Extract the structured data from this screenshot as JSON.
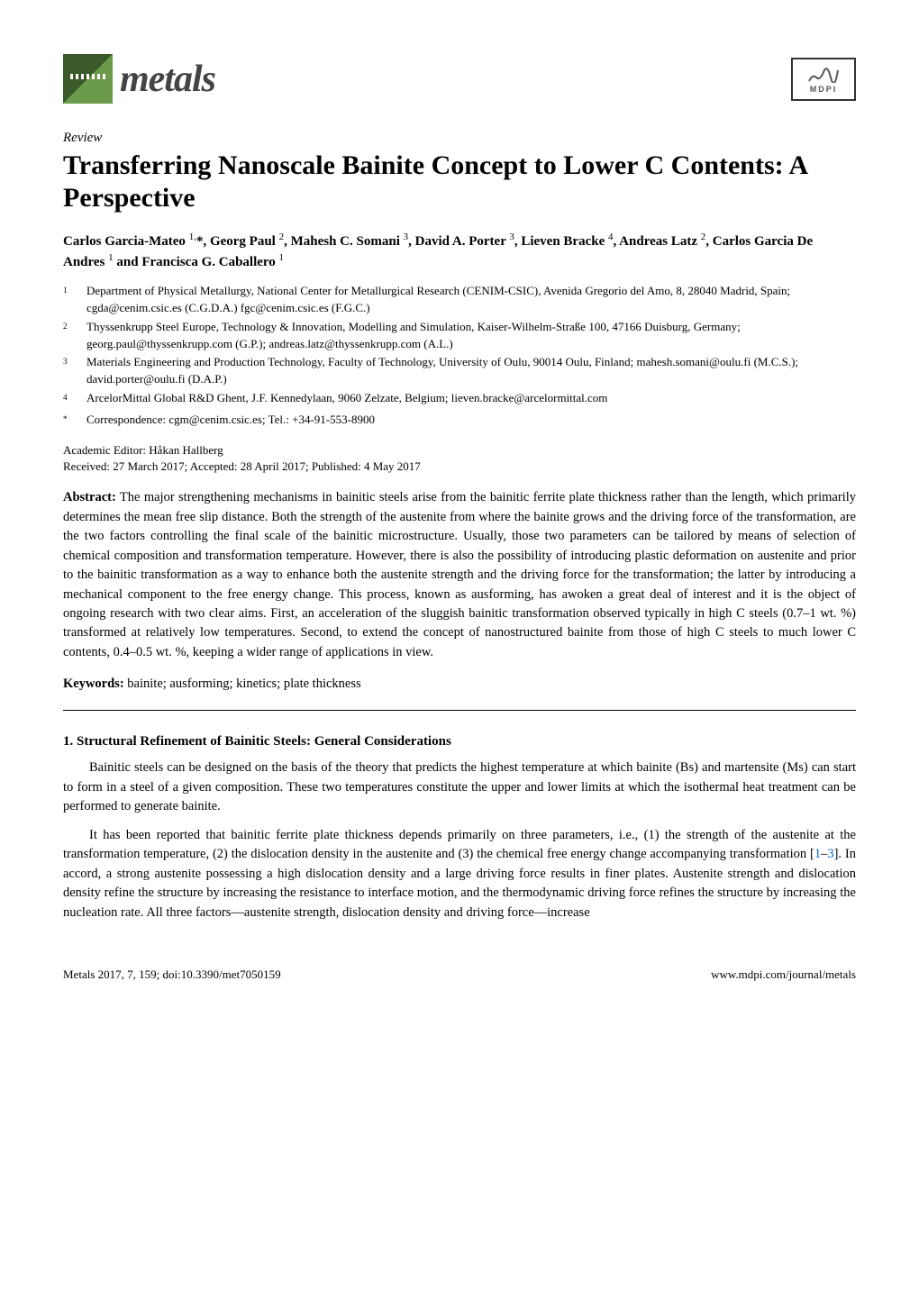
{
  "header": {
    "journal_name": "metals",
    "publisher": "MDPI"
  },
  "article": {
    "type": "Review",
    "title": "Transferring Nanoscale Bainite Concept to Lower C Contents: A Perspective",
    "authors_html": "Carlos Garcia-Mateo <sup>1,</sup>*, Georg Paul <sup>2</sup>, Mahesh C. Somani <sup>3</sup>, David A. Porter <sup>3</sup>, Lieven Bracke <sup>4</sup>, Andreas Latz <sup>2</sup>, Carlos Garcia De Andres <sup>1</sup> and Francisca G. Caballero <sup>1</sup>",
    "affiliations": [
      {
        "n": "1",
        "text": "Department of Physical Metallurgy, National Center for Metallurgical Research (CENIM-CSIC), Avenida Gregorio del Amo, 8, 28040 Madrid, Spain; cgda@cenim.csic.es (C.G.D.A.) fgc@cenim.csic.es (F.G.C.)"
      },
      {
        "n": "2",
        "text": "Thyssenkrupp Steel Europe, Technology & Innovation, Modelling and Simulation, Kaiser-Wilhelm-Straße 100, 47166 Duisburg, Germany; georg.paul@thyssenkrupp.com (G.P.); andreas.latz@thyssenkrupp.com (A.L.)"
      },
      {
        "n": "3",
        "text": "Materials Engineering and Production Technology, Faculty of Technology, University of Oulu, 90014 Oulu, Finland; mahesh.somani@oulu.fi (M.C.S.); david.porter@oulu.fi (D.A.P.)"
      },
      {
        "n": "4",
        "text": "ArcelorMittal Global R&D Ghent, J.F. Kennedylaan, 9060 Zelzate, Belgium; lieven.bracke@arcelormittal.com"
      },
      {
        "n": "*",
        "text": "Correspondence: cgm@cenim.csic.es; Tel.: +34-91-553-8900"
      }
    ],
    "editor": "Academic Editor: Håkan Hallberg",
    "dates": "Received: 27 March 2017; Accepted: 28 April 2017; Published: 4 May 2017",
    "abstract_label": "Abstract:",
    "abstract": "The major strengthening mechanisms in bainitic steels arise from the bainitic ferrite plate thickness rather than the length, which primarily determines the mean free slip distance. Both the strength of the austenite from where the bainite grows and the driving force of the transformation, are the two factors controlling the final scale of the bainitic microstructure. Usually, those two parameters can be tailored by means of selection of chemical composition and transformation temperature. However, there is also the possibility of introducing plastic deformation on austenite and prior to the bainitic transformation as a way to enhance both the austenite strength and the driving force for the transformation; the latter by introducing a mechanical component to the free energy change. This process, known as ausforming, has awoken a great deal of interest and it is the object of ongoing research with two clear aims. First, an acceleration of the sluggish bainitic transformation observed typically in high C steels (0.7–1 wt. %) transformed at relatively low temperatures. Second, to extend the concept of nanostructured bainite from those of high C steels to much lower C contents, 0.4–0.5 wt. %, keeping a wider range of applications in view.",
    "keywords_label": "Keywords:",
    "keywords": "bainite; ausforming; kinetics; plate thickness"
  },
  "section1": {
    "heading": "1. Structural Refinement of Bainitic Steels: General Considerations",
    "para1": "Bainitic steels can be designed on the basis of the theory that predicts the highest temperature at which bainite (Bs) and martensite (Ms) can start to form in a steel of a given composition. These two temperatures constitute the upper and lower limits at which the isothermal heat treatment can be performed to generate bainite.",
    "para2_pre": "It has been reported that bainitic ferrite plate thickness depends primarily on three parameters, i.e., (1) the strength of the austenite at the transformation temperature, (2) the dislocation density in the austenite and (3) the chemical free energy change accompanying transformation [",
    "ref1": "1",
    "ref_dash": "–",
    "ref2": "3",
    "para2_post": "]. In accord, a strong austenite possessing a high dislocation density and a large driving force results in finer plates. Austenite strength and dislocation density refine the structure by increasing the resistance to interface motion, and the thermodynamic driving force refines the structure by increasing the nucleation rate. All three factors—austenite strength, dislocation density and driving force—increase"
  },
  "footer": {
    "left": "Metals 2017, 7, 159; doi:10.3390/met7050159",
    "right": "www.mdpi.com/journal/metals"
  },
  "style": {
    "link_color": "#0066cc"
  }
}
